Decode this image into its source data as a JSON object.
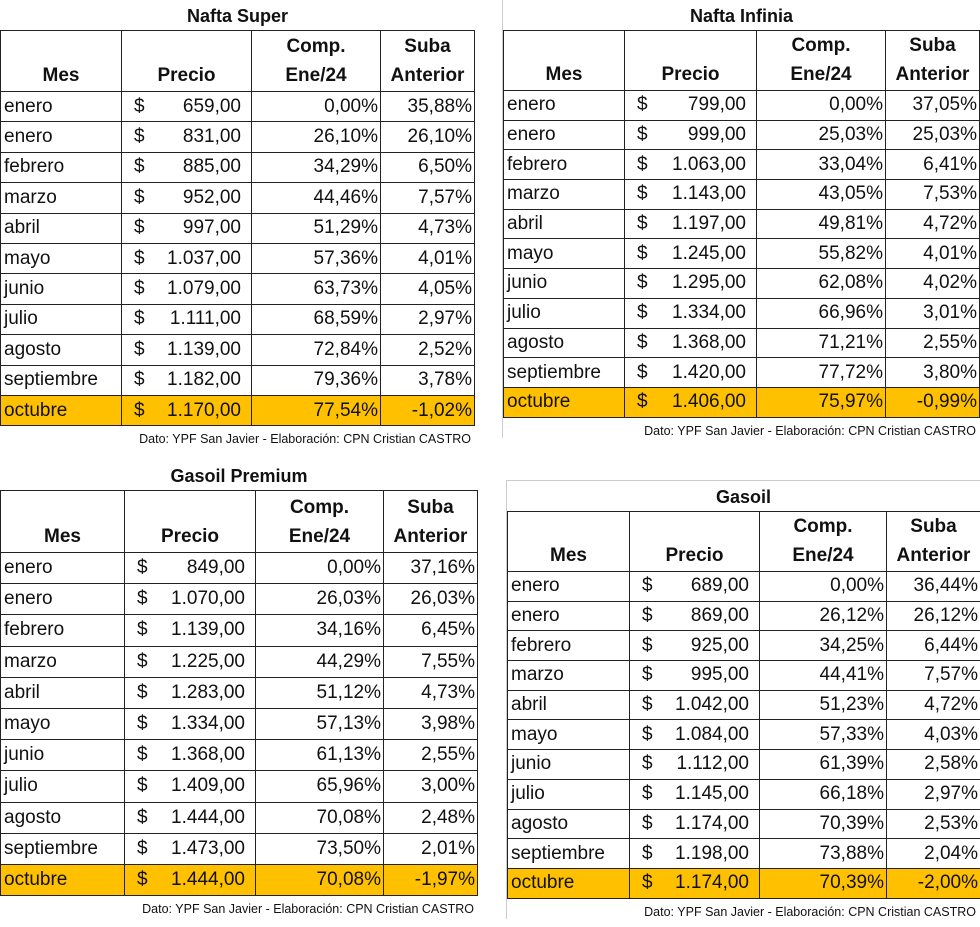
{
  "headers": {
    "mes": "Mes",
    "precio": "Precio",
    "comp1": "Comp.",
    "comp2": "Ene/24",
    "suba1": "Suba",
    "suba2": "Anterior"
  },
  "currency": "$",
  "footer": "Dato: YPF San Javier - Elaboración: CPN Cristian CASTRO",
  "highlight_color": "#ffc000",
  "tables": [
    {
      "title": "Nafta Super",
      "rows": [
        [
          "enero",
          "659,00",
          "0,00%",
          "35,88%"
        ],
        [
          "enero",
          "831,00",
          "26,10%",
          "26,10%"
        ],
        [
          "febrero",
          "885,00",
          "34,29%",
          "6,50%"
        ],
        [
          "marzo",
          "952,00",
          "44,46%",
          "7,57%"
        ],
        [
          "abril",
          "997,00",
          "51,29%",
          "4,73%"
        ],
        [
          "mayo",
          "1.037,00",
          "57,36%",
          "4,01%"
        ],
        [
          "junio",
          "1.079,00",
          "63,73%",
          "4,05%"
        ],
        [
          "julio",
          "1.111,00",
          "68,59%",
          "2,97%"
        ],
        [
          "agosto",
          "1.139,00",
          "72,84%",
          "2,52%"
        ],
        [
          "septiembre",
          "1.182,00",
          "79,36%",
          "3,78%"
        ],
        [
          "octubre",
          "1.170,00",
          "77,54%",
          "-1,02%"
        ]
      ]
    },
    {
      "title": "Nafta Infinia",
      "rows": [
        [
          "enero",
          "799,00",
          "0,00%",
          "37,05%"
        ],
        [
          "enero",
          "999,00",
          "25,03%",
          "25,03%"
        ],
        [
          "febrero",
          "1.063,00",
          "33,04%",
          "6,41%"
        ],
        [
          "marzo",
          "1.143,00",
          "43,05%",
          "7,53%"
        ],
        [
          "abril",
          "1.197,00",
          "49,81%",
          "4,72%"
        ],
        [
          "mayo",
          "1.245,00",
          "55,82%",
          "4,01%"
        ],
        [
          "junio",
          "1.295,00",
          "62,08%",
          "4,02%"
        ],
        [
          "julio",
          "1.334,00",
          "66,96%",
          "3,01%"
        ],
        [
          "agosto",
          "1.368,00",
          "71,21%",
          "2,55%"
        ],
        [
          "septiembre",
          "1.420,00",
          "77,72%",
          "3,80%"
        ],
        [
          "octubre",
          "1.406,00",
          "75,97%",
          "-0,99%"
        ]
      ]
    },
    {
      "title": "Gasoil Premium",
      "rows": [
        [
          "enero",
          "849,00",
          "0,00%",
          "37,16%"
        ],
        [
          "enero",
          "1.070,00",
          "26,03%",
          "26,03%"
        ],
        [
          "febrero",
          "1.139,00",
          "34,16%",
          "6,45%"
        ],
        [
          "marzo",
          "1.225,00",
          "44,29%",
          "7,55%"
        ],
        [
          "abril",
          "1.283,00",
          "51,12%",
          "4,73%"
        ],
        [
          "mayo",
          "1.334,00",
          "57,13%",
          "3,98%"
        ],
        [
          "junio",
          "1.368,00",
          "61,13%",
          "2,55%"
        ],
        [
          "julio",
          "1.409,00",
          "65,96%",
          "3,00%"
        ],
        [
          "agosto",
          "1.444,00",
          "70,08%",
          "2,48%"
        ],
        [
          "septiembre",
          "1.473,00",
          "73,50%",
          "2,01%"
        ],
        [
          "octubre",
          "1.444,00",
          "70,08%",
          "-1,97%"
        ]
      ]
    },
    {
      "title": "Gasoil",
      "rows": [
        [
          "enero",
          "689,00",
          "0,00%",
          "36,44%"
        ],
        [
          "enero",
          "869,00",
          "26,12%",
          "26,12%"
        ],
        [
          "febrero",
          "925,00",
          "34,25%",
          "6,44%"
        ],
        [
          "marzo",
          "995,00",
          "44,41%",
          "7,57%"
        ],
        [
          "abril",
          "1.042,00",
          "51,23%",
          "4,72%"
        ],
        [
          "mayo",
          "1.084,00",
          "57,33%",
          "4,03%"
        ],
        [
          "junio",
          "1.112,00",
          "61,39%",
          "2,58%"
        ],
        [
          "julio",
          "1.145,00",
          "66,18%",
          "2,97%"
        ],
        [
          "agosto",
          "1.174,00",
          "70,39%",
          "2,53%"
        ],
        [
          "septiembre",
          "1.198,00",
          "73,88%",
          "2,04%"
        ],
        [
          "octubre",
          "1.174,00",
          "70,39%",
          "-2,00%"
        ]
      ]
    }
  ]
}
